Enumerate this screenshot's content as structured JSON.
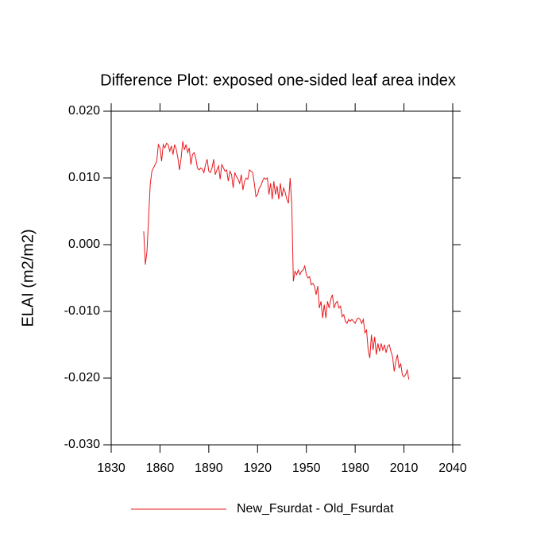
{
  "chart_data": {
    "type": "line",
    "title": "Difference Plot: exposed one-sided leaf area index",
    "y_label": "ELAI  (m2/m2)",
    "x": [
      1850,
      1851,
      1852,
      1853,
      1854,
      1855,
      1856,
      1857,
      1858,
      1859,
      1860,
      1861,
      1862,
      1863,
      1864,
      1865,
      1866,
      1867,
      1868,
      1869,
      1870,
      1871,
      1872,
      1873,
      1874,
      1875,
      1876,
      1877,
      1878,
      1879,
      1880,
      1881,
      1882,
      1883,
      1884,
      1885,
      1886,
      1887,
      1888,
      1889,
      1890,
      1891,
      1892,
      1893,
      1894,
      1895,
      1896,
      1897,
      1898,
      1899,
      1900,
      1901,
      1902,
      1903,
      1904,
      1905,
      1906,
      1907,
      1908,
      1909,
      1910,
      1911,
      1912,
      1913,
      1914,
      1915,
      1916,
      1917,
      1918,
      1919,
      1920,
      1921,
      1922,
      1923,
      1924,
      1925,
      1926,
      1927,
      1928,
      1929,
      1930,
      1931,
      1932,
      1933,
      1934,
      1935,
      1936,
      1937,
      1938,
      1939,
      1940,
      1941,
      1942,
      1943,
      1944,
      1945,
      1946,
      1947,
      1948,
      1949,
      1950,
      1951,
      1952,
      1953,
      1954,
      1955,
      1956,
      1957,
      1958,
      1959,
      1960,
      1961,
      1962,
      1963,
      1964,
      1965,
      1966,
      1967,
      1968,
      1969,
      1970,
      1971,
      1972,
      1973,
      1974,
      1975,
      1976,
      1977,
      1978,
      1979,
      1980,
      1981,
      1982,
      1983,
      1984,
      1985,
      1986,
      1987,
      1988,
      1989,
      1990,
      1991,
      1992,
      1993,
      1994,
      1995,
      1996,
      1997,
      1998,
      1999,
      2000,
      2001,
      2002,
      2003,
      2004,
      2005,
      2006,
      2007,
      2008,
      2009,
      2010,
      2011,
      2012,
      2013
    ],
    "series": [
      {
        "name": "New_Fsurdat - Old_Fsurdat",
        "color": "#e8191e",
        "values": [
          0.002,
          -0.003,
          -0.001,
          0.004,
          0.009,
          0.011,
          0.0115,
          0.012,
          0.0125,
          0.015,
          0.0145,
          0.0125,
          0.015,
          0.0145,
          0.0152,
          0.015,
          0.014,
          0.0148,
          0.0135,
          0.015,
          0.0143,
          0.013,
          0.0112,
          0.013,
          0.0155,
          0.0142,
          0.015,
          0.0138,
          0.0145,
          0.012,
          0.0135,
          0.0138,
          0.013,
          0.0115,
          0.0112,
          0.0115,
          0.0113,
          0.0108,
          0.012,
          0.0128,
          0.011,
          0.0108,
          0.0115,
          0.0128,
          0.0105,
          0.0112,
          0.0118,
          0.0098,
          0.012,
          0.0115,
          0.011,
          0.0112,
          0.0095,
          0.011,
          0.0105,
          0.0085,
          0.0108,
          0.0102,
          0.0098,
          0.0092,
          0.0105,
          0.0082,
          0.0095,
          0.01,
          0.0098,
          0.0112,
          0.011,
          0.0108,
          0.0092,
          0.0072,
          0.0075,
          0.0085,
          0.0088,
          0.0095,
          0.01,
          0.0098,
          0.01,
          0.0075,
          0.0092,
          0.0068,
          0.0095,
          0.0075,
          0.0088,
          0.0068,
          0.0092,
          0.0072,
          0.0085,
          0.0078,
          0.0068,
          0.0062,
          0.01,
          0.0062,
          -0.0055,
          -0.004,
          -0.0045,
          -0.0038,
          -0.0045,
          -0.004,
          -0.0038,
          -0.0032,
          -0.0045,
          -0.005,
          -0.0048,
          -0.006,
          -0.0058,
          -0.0062,
          -0.0075,
          -0.0062,
          -0.0095,
          -0.0085,
          -0.011,
          -0.009,
          -0.011,
          -0.0085,
          -0.0095,
          -0.0082,
          -0.0075,
          -0.0095,
          -0.0088,
          -0.0085,
          -0.0095,
          -0.0092,
          -0.0108,
          -0.0105,
          -0.0115,
          -0.0118,
          -0.0112,
          -0.0115,
          -0.0112,
          -0.0115,
          -0.0118,
          -0.0112,
          -0.011,
          -0.0112,
          -0.0118,
          -0.0112,
          -0.0132,
          -0.0128,
          -0.0158,
          -0.017,
          -0.0135,
          -0.0158,
          -0.0138,
          -0.0165,
          -0.0148,
          -0.016,
          -0.0148,
          -0.0158,
          -0.015,
          -0.0162,
          -0.0152,
          -0.015,
          -0.016,
          -0.0168,
          -0.019,
          -0.0175,
          -0.0165,
          -0.0185,
          -0.0178,
          -0.0195,
          -0.0198,
          -0.0195,
          -0.0188,
          -0.0202
        ]
      }
    ],
    "xlim": [
      1830,
      2040
    ],
    "xticks": [
      1830,
      1860,
      1890,
      1920,
      1950,
      1980,
      2010,
      2040
    ],
    "ylim": [
      -0.03,
      0.02
    ],
    "yticks": [
      {
        "value": -0.03,
        "label": "-0.030"
      },
      {
        "value": -0.02,
        "label": "-0.020"
      },
      {
        "value": -0.01,
        "label": "-0.010"
      },
      {
        "value": 0,
        "label": "0.000"
      },
      {
        "value": 0.01,
        "label": "0.010"
      },
      {
        "value": 0.02,
        "label": "0.020"
      }
    ],
    "grid": false,
    "legend": "bottom"
  }
}
